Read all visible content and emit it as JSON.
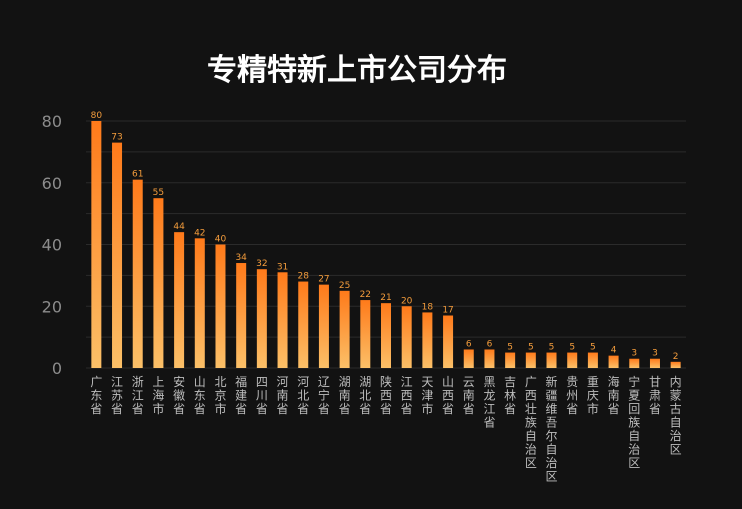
{
  "chart_data": {
    "type": "bar",
    "title": "专精特新上市公司分布",
    "categories": [
      "广东省",
      "江苏省",
      "浙江省",
      "上海市",
      "安徽省",
      "山东省",
      "北京市",
      "福建省",
      "四川省",
      "河南省",
      "河北省",
      "辽宁省",
      "湖南省",
      "湖北省",
      "陕西省",
      "江西省",
      "天津市",
      "山西省",
      "云南省",
      "黑龙江省",
      "吉林省",
      "广西壮族自治区",
      "新疆维吾尔自治区",
      "贵州省",
      "重庆市",
      "海南省",
      "宁夏回族自治区",
      "甘肃省",
      "内蒙古自治区"
    ],
    "values": [
      80,
      73,
      61,
      55,
      44,
      42,
      40,
      34,
      32,
      31,
      28,
      27,
      25,
      22,
      21,
      20,
      18,
      17,
      6,
      6,
      5,
      5,
      5,
      5,
      5,
      4,
      3,
      3,
      2
    ],
    "ylim": [
      0,
      80
    ],
    "yticks": [
      0,
      20,
      40,
      60,
      80
    ],
    "grid": true,
    "colors": {
      "bar_top": "#ff7a1a",
      "bar_bottom": "#fbc068",
      "label": "#f39c3c"
    }
  }
}
